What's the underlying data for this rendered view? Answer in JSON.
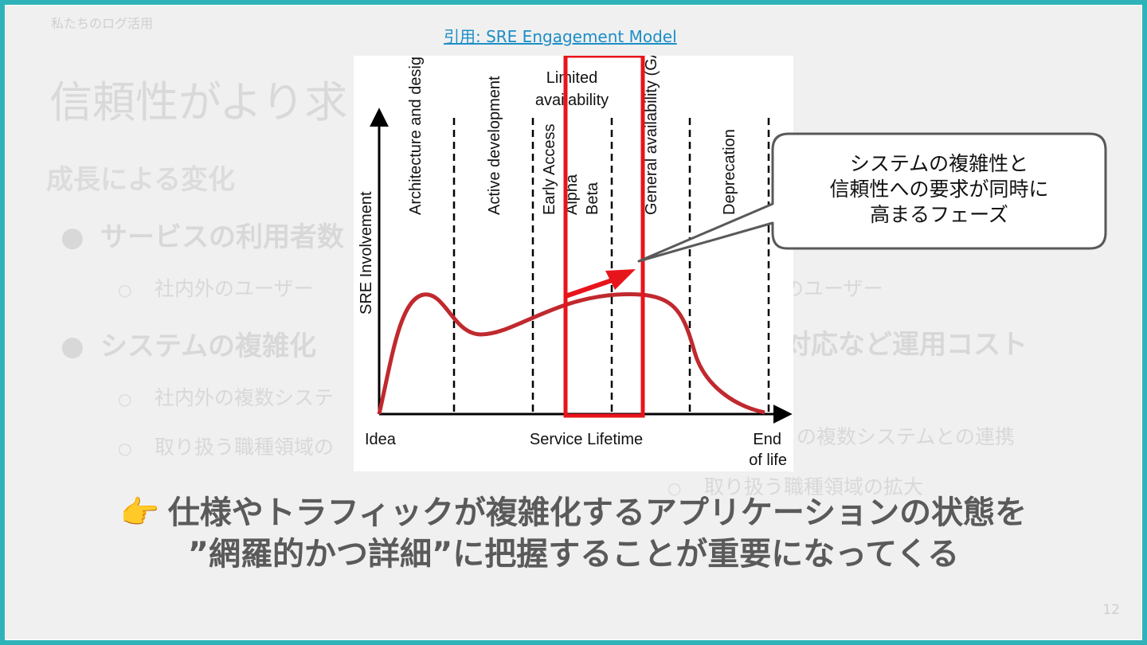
{
  "slide": {
    "section_label": "私たちのログ活用",
    "title": "信頼性がより求",
    "heading": "成長による変化",
    "page_number": "12"
  },
  "background_bullets": {
    "b1": "サービスの利用者数",
    "b1_sub": "社内外のユーザー",
    "b2": "システムの複雑化",
    "b2_sub1": "社内外の複数システ",
    "b2_sub2": "取り扱う職種領域の",
    "r1": "のユーザー",
    "r2": "対応など運用コスト",
    "r3": "の複数システムとの連携",
    "r4": "取り扱う職種領域の拡大"
  },
  "markers": {
    "filled": "●",
    "hollow": "○"
  },
  "citation": {
    "text": "引用: SRE Engagement Model"
  },
  "diagram": {
    "y_axis_label": "SRE Involvement",
    "x_axis_label": "Service Lifetime",
    "x_start_label": "Idea",
    "x_end_label_1": "End",
    "x_end_label_2": "of life",
    "phases": {
      "architecture": "Architecture and design",
      "active_dev": "Active development",
      "early_access": "Early Access",
      "alpha": "Alpha",
      "beta": "Beta",
      "limited_1": "Limited",
      "limited_2": "availability",
      "ga": "General availability (GA)",
      "deprecation": "Deprecation"
    },
    "colors": {
      "curve": "#c0292e",
      "highlight": "#e8141b",
      "axis": "#000000"
    }
  },
  "callout": {
    "line1": "システムの複雑性と",
    "line2": "信頼性への要求が同時に",
    "line3": "高まるフェーズ"
  },
  "conclusion": {
    "icon": "👉",
    "line1": "仕様やトラフィックが複雑化するアプリケーションの状態を",
    "line2": "”網羅的かつ詳細”に把握することが重要になってくる"
  }
}
